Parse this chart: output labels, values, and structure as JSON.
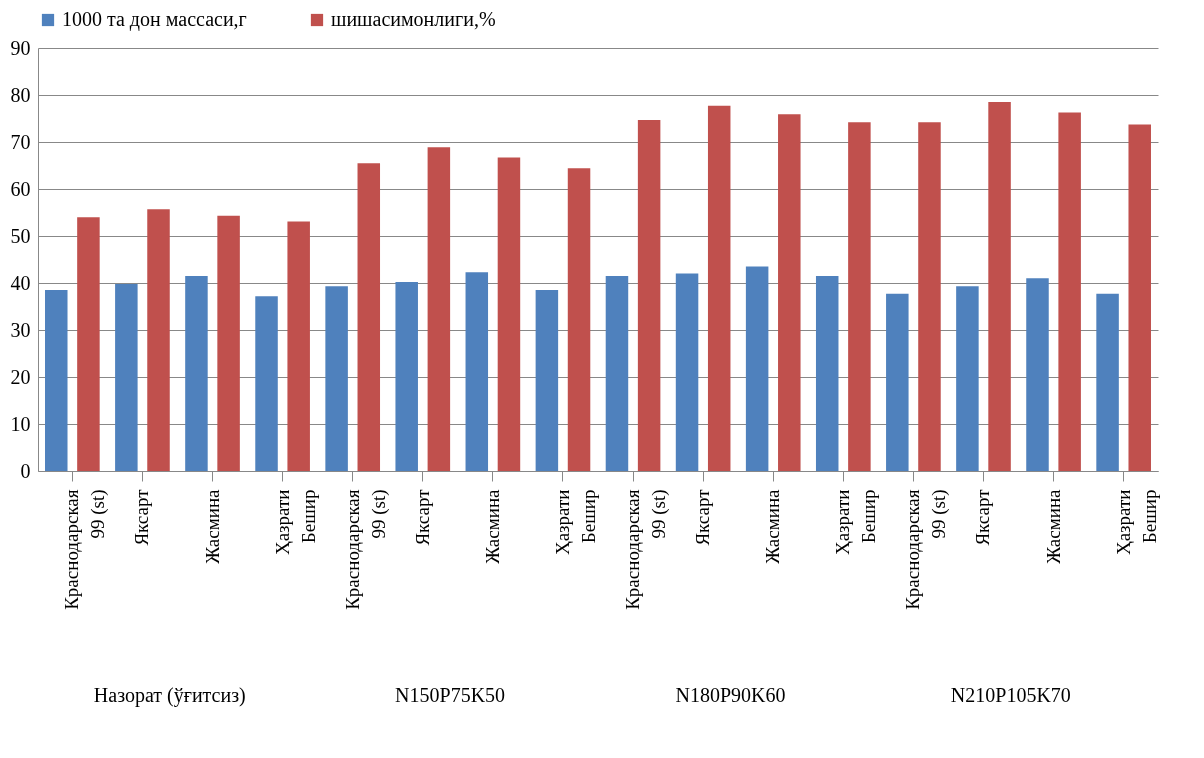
{
  "chart_data": {
    "type": "bar",
    "categories": [
      "Краснодарская 99 (st)",
      "Яксарт",
      "Жасмина",
      "Ҳазрати Бешир",
      "Краснодарская 99 (st)",
      "Яксарт",
      "Жасмина",
      "Ҳазрати Бешир",
      "Краснодарская 99 (st)",
      "Яксарт",
      "Жасмина",
      "Ҳазрати Бешир",
      "Краснодарская 99 (st)",
      "Яксарт",
      "Жасмина",
      "Ҳазрати Бешир"
    ],
    "series": [
      {
        "name": "1000 та дон массаси,г",
        "color": "#4f81bd",
        "values": [
          38.5,
          39.8,
          41.5,
          37.2,
          39.3,
          40.2,
          42.3,
          38.5,
          41.5,
          42,
          43.5,
          41.5,
          37.7,
          39.3,
          41,
          37.7
        ]
      },
      {
        "name": "шишасимонлиги,%",
        "color": "#c0504d",
        "values": [
          54,
          55.7,
          54.3,
          53.1,
          65.5,
          68.9,
          66.7,
          64.4,
          74.7,
          77.7,
          75.9,
          74.2,
          74.2,
          78.5,
          76.3,
          73.7
        ]
      }
    ],
    "annotations": [
      "Назорат (ўғитсиз)",
      "N150P75K50",
      "N180P90K60",
      "N210P105K70"
    ],
    "ylim": [
      0,
      90
    ],
    "yticks": [
      0,
      10,
      20,
      30,
      40,
      50,
      60,
      70,
      80,
      90
    ],
    "grid": "y",
    "legend": "top"
  }
}
